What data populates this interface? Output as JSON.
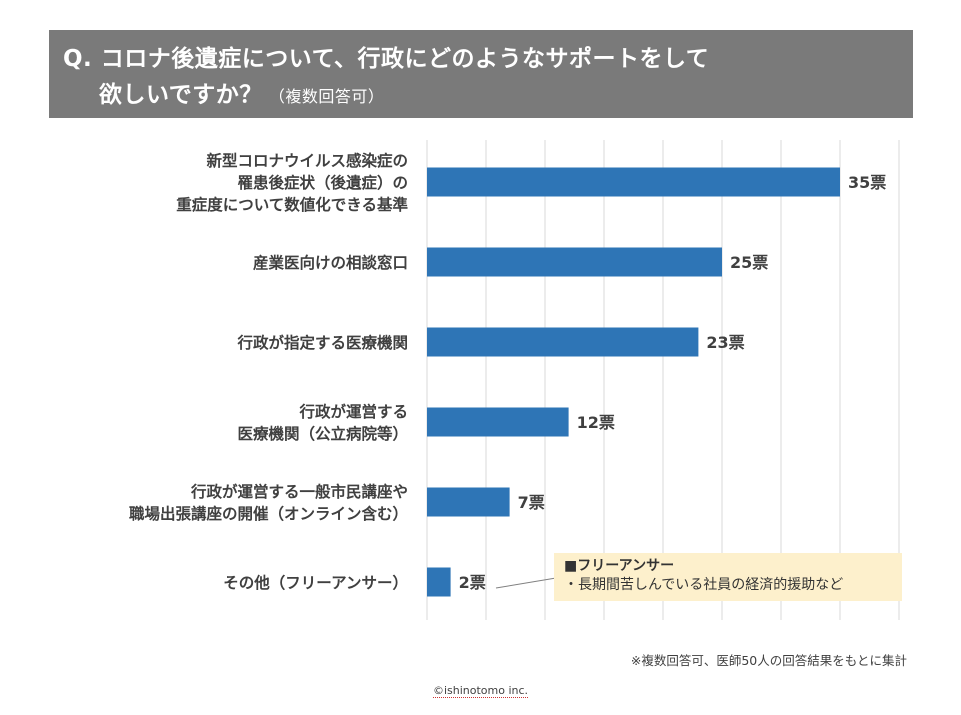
{
  "header": {
    "title_line1": "Q. コロナ後遺症について、行政にどのようなサポートをして",
    "title_line2": "欲しいですか？",
    "title_note": "（複数回答可）",
    "background": "#7a7a7a"
  },
  "chart_data": {
    "type": "bar",
    "orientation": "horizontal",
    "categories": [
      [
        "新型コロナウイルス感染症の",
        "罹患後症状（後遺症）の",
        "重症度について数値化できる基準"
      ],
      [
        "産業医向けの相談窓口"
      ],
      [
        "行政が指定する医療機関"
      ],
      [
        "行政が運営する",
        "医療機関（公立病院等）"
      ],
      [
        "行政が運営する一般市民講座や",
        "職場出張講座の開催（オンライン含む）"
      ],
      [
        "その他（フリーアンサー）"
      ]
    ],
    "values": [
      35,
      25,
      23,
      12,
      7,
      2
    ],
    "value_labels": [
      "35票",
      "25票",
      "23票",
      "12票",
      "7票",
      "2票"
    ],
    "xlim": [
      0,
      40
    ],
    "grid": true,
    "bar_color": "#2e75b6"
  },
  "callout": {
    "title": "■フリーアンサー",
    "item": "・長期間苦しんでいる社員の経済的援助など",
    "background": "#fdf0cc"
  },
  "footnote": "※複数回答可、医師50人の回答結果をもとに集計",
  "copyright": "©ishinotomo inc."
}
